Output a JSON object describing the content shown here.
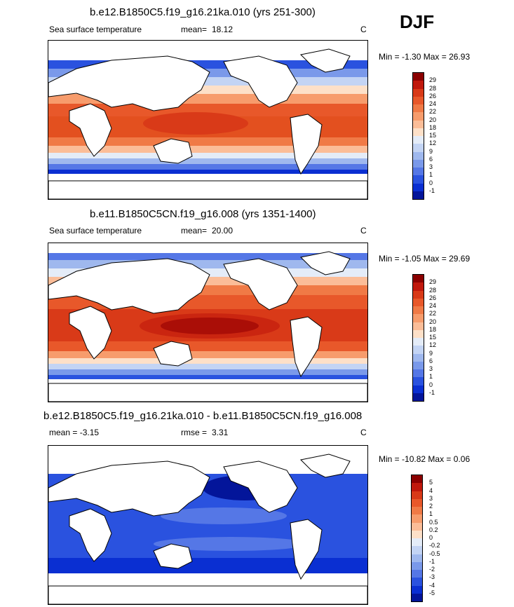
{
  "season": "DJF",
  "panels": [
    {
      "title": "b.e12.B1850C5.f19_g16.21ka.010 (yrs 251-300)",
      "left_label": "Sea surface temperature",
      "stat_label": "mean=",
      "stat_value": "18.12",
      "units": "C",
      "min_label": "Min =",
      "min_value": "-1.30",
      "max_label": "Max =",
      "max_value": "26.93",
      "colorbar": {
        "levels": [
          "29",
          "28",
          "26",
          "24",
          "22",
          "20",
          "18",
          "15",
          "12",
          "9",
          "6",
          "3",
          "1",
          "0",
          "-1"
        ],
        "colors": [
          "#8b0000",
          "#c0180c",
          "#d93a18",
          "#e8582a",
          "#f07a46",
          "#f79c6c",
          "#fbbd98",
          "#fde0c8",
          "#e4ecf8",
          "#c3d4f4",
          "#9fb8ee",
          "#7a99ea",
          "#5577e6",
          "#2a52df",
          "#0a2fd2",
          "#03159a"
        ]
      }
    },
    {
      "title": "b.e11.B1850C5CN.f19_g16.008 (yrs 1351-1400)",
      "left_label": "Sea surface temperature",
      "stat_label": "mean=",
      "stat_value": "20.00",
      "units": "C",
      "min_label": "Min =",
      "min_value": "-1.05",
      "max_label": "Max =",
      "max_value": "29.69",
      "colorbar": {
        "levels": [
          "29",
          "28",
          "26",
          "24",
          "22",
          "20",
          "18",
          "15",
          "12",
          "9",
          "6",
          "3",
          "1",
          "0",
          "-1"
        ],
        "colors": [
          "#8b0000",
          "#c0180c",
          "#d93a18",
          "#e8582a",
          "#f07a46",
          "#f79c6c",
          "#fbbd98",
          "#fde0c8",
          "#e4ecf8",
          "#c3d4f4",
          "#9fb8ee",
          "#7a99ea",
          "#5577e6",
          "#2a52df",
          "#0a2fd2",
          "#03159a"
        ]
      }
    },
    {
      "title": "b.e12.B1850C5.f19_g16.21ka.010 - b.e11.B1850C5CN.f19_g16.008",
      "left_label": "mean =  -3.15",
      "stat_label": "rmse =",
      "stat_value": "3.31",
      "units": "C",
      "min_label": "Min =",
      "min_value": "-10.82",
      "max_label": "Max =",
      "max_value": "0.06",
      "colorbar": {
        "levels": [
          "5",
          "4",
          "3",
          "2",
          "1",
          "0.5",
          "0.2",
          "0",
          "-0.2",
          "-0.5",
          "-1",
          "-2",
          "-3",
          "-4",
          "-5"
        ],
        "colors": [
          "#8b0000",
          "#c0180c",
          "#d93a18",
          "#e8582a",
          "#f07a46",
          "#f79c6c",
          "#fbbd98",
          "#fde0c8",
          "#e4ecf8",
          "#c3d4f4",
          "#9fb8ee",
          "#7a99ea",
          "#5577e6",
          "#2a52df",
          "#0a2fd2",
          "#03159a"
        ]
      }
    }
  ]
}
